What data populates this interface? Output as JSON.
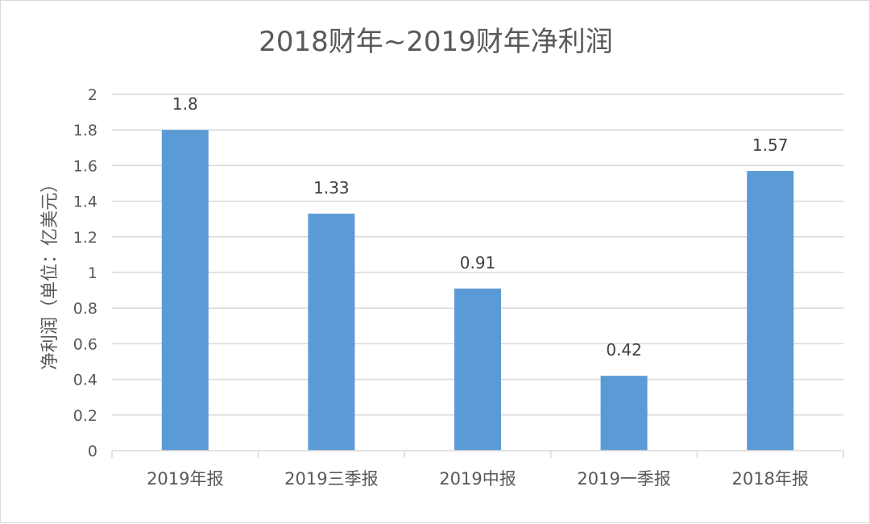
{
  "chart_data": {
    "type": "bar",
    "title": "2018财年~2019财年净利润",
    "xlabel": "",
    "ylabel": "净利润（单位：亿美元）",
    "categories": [
      "2019年报",
      "2019三季报",
      "2019中报",
      "2019一季报",
      "2018年报"
    ],
    "values": [
      1.8,
      1.33,
      0.91,
      0.42,
      1.57
    ],
    "data_labels": [
      "1.8",
      "1.33",
      "0.91",
      "0.42",
      "1.57"
    ],
    "ylim": [
      0,
      2
    ],
    "yticks": [
      "0",
      "0.2",
      "0.4",
      "0.6",
      "0.8",
      "1",
      "1.2",
      "1.4",
      "1.6",
      "1.8",
      "2"
    ],
    "grid": true,
    "legend": "none",
    "colors": {
      "bar": "#5b9bd5",
      "grid": "#d9d9d9",
      "text": "#595959"
    }
  }
}
